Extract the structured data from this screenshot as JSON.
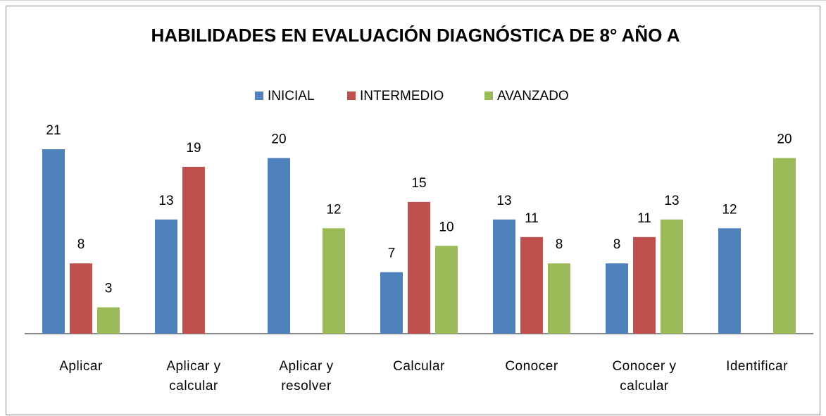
{
  "chart_data": {
    "type": "bar",
    "title": "HABILIDADES EN EVALUACIÓN DIAGNÓSTICA DE 8° AÑO A",
    "categories": [
      "Aplicar",
      "Aplicar y calcular",
      "Aplicar y resolver",
      "Calcular",
      "Conocer",
      "Conocer y calcular",
      "Identificar"
    ],
    "series": [
      {
        "name": "INICIAL",
        "color": "#4f81bd",
        "values": [
          21,
          13,
          20,
          7,
          13,
          8,
          12
        ]
      },
      {
        "name": "INTERMEDIO",
        "color": "#c0504d",
        "values": [
          8,
          19,
          null,
          15,
          11,
          11,
          null
        ]
      },
      {
        "name": "AVANZADO",
        "color": "#9bbb59",
        "values": [
          3,
          null,
          12,
          10,
          8,
          13,
          20
        ]
      }
    ],
    "ylim": [
      0,
      21
    ],
    "legend": "top"
  }
}
